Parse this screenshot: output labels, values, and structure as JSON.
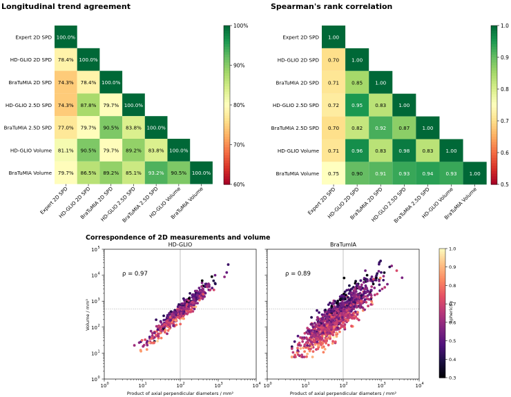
{
  "chart_data": [
    {
      "type": "heatmap",
      "title": "Longitudinal trend agreement",
      "labels": [
        "Expert 2D SPD",
        "HD-GLIO 2D SPD",
        "BraTuMIA 2D SPD",
        "HD-GLIO 2.5D SPD",
        "BraTuMIA 2.5D SPD",
        "HD-GLIO Volume",
        "BraTuMIA Volume"
      ],
      "cells": [
        [
          "100.0%"
        ],
        [
          "78.4%",
          "100.0%"
        ],
        [
          "74.3%",
          "78.4%",
          "100.0%"
        ],
        [
          "74.3%",
          "87.8%",
          "79.7%",
          "100.0%"
        ],
        [
          "77.0%",
          "79.7%",
          "90.5%",
          "83.8%",
          "100.0%"
        ],
        [
          "81.1%",
          "90.5%",
          "79.7%",
          "89.2%",
          "83.8%",
          "100.0%"
        ],
        [
          "79.7%",
          "86.5%",
          "89.2%",
          "85.1%",
          "93.2%",
          "90.5%",
          "100.0%"
        ]
      ],
      "values": [
        [
          100.0
        ],
        [
          78.4,
          100.0
        ],
        [
          74.3,
          78.4,
          100.0
        ],
        [
          74.3,
          87.8,
          79.7,
          100.0
        ],
        [
          77.0,
          79.7,
          90.5,
          83.8,
          100.0
        ],
        [
          81.1,
          90.5,
          79.7,
          89.2,
          83.8,
          100.0
        ],
        [
          79.7,
          86.5,
          89.2,
          85.1,
          93.2,
          90.5,
          100.0
        ]
      ],
      "vmin": 60,
      "vmax": 100,
      "colorbar_ticks": [
        "100%",
        "90%",
        "80%",
        "70%",
        "60%"
      ]
    },
    {
      "type": "heatmap",
      "title": "Spearman's rank correlation",
      "labels": [
        "Expert 2D SPD",
        "HD-GLIO 2D SPD",
        "BraTuMIA 2D SPD",
        "HD-GLIO 2.5D SPD",
        "BraTuMIA 2.5D SPD",
        "HD-GLIO Volume",
        "BraTuMIA Volume"
      ],
      "cells": [
        [
          "1.00"
        ],
        [
          "0.70",
          "1.00"
        ],
        [
          "0.71",
          "0.85",
          "1.00"
        ],
        [
          "0.72",
          "0.95",
          "0.83",
          "1.00"
        ],
        [
          "0.70",
          "0.82",
          "0.92",
          "0.87",
          "1.00"
        ],
        [
          "0.71",
          "0.96",
          "0.83",
          "0.98",
          "0.83",
          "1.00"
        ],
        [
          "0.75",
          "0.90",
          "0.91",
          "0.93",
          "0.94",
          "0.93",
          "1.00"
        ]
      ],
      "values": [
        [
          1.0
        ],
        [
          0.7,
          1.0
        ],
        [
          0.71,
          0.85,
          1.0
        ],
        [
          0.72,
          0.95,
          0.83,
          1.0
        ],
        [
          0.7,
          0.82,
          0.92,
          0.87,
          1.0
        ],
        [
          0.71,
          0.96,
          0.83,
          0.98,
          0.83,
          1.0
        ],
        [
          0.75,
          0.9,
          0.91,
          0.93,
          0.94,
          0.93,
          1.0
        ]
      ],
      "vmin": 0.5,
      "vmax": 1.0,
      "colorbar_ticks": [
        "1.0",
        "0.9",
        "0.8",
        "0.7",
        "0.6",
        "0.5"
      ]
    },
    {
      "type": "scatter",
      "figure_title": "Correspondence of 2D measurements and volume",
      "panels": [
        {
          "subtitle": "HD-GLIO",
          "rho_label": "ρ = 0.97",
          "rho": 0.97,
          "x_center_log": 2.0,
          "x_spread_log": 0.42,
          "slope": 1.27,
          "intercept": 0.04,
          "noise": 0.17,
          "n_points": 520
        },
        {
          "subtitle": "BraTumIA",
          "rho_label": "ρ = 0.89",
          "rho": 0.89,
          "x_center_log": 1.85,
          "x_spread_log": 0.48,
          "slope": 1.25,
          "intercept": 0.12,
          "noise": 0.33,
          "n_points": 1150
        }
      ],
      "xlabel": "Product of axial perpendicular diameters / mm²",
      "ylabel": "Volume / mm³",
      "xlim_log10": [
        0,
        4
      ],
      "ylim_log10": [
        0,
        5
      ],
      "x_tick_exponents": [
        "0",
        "1",
        "2",
        "3",
        "4"
      ],
      "y_tick_exponents": [
        "0",
        "1",
        "2",
        "3",
        "4",
        "5"
      ],
      "tick_base": "10",
      "reference_lines": {
        "x": 100,
        "y": 500
      },
      "colorbar_label": "Sphericity",
      "colorbar_range": [
        0.3,
        1.0
      ],
      "colorbar_ticks": [
        "1.0",
        "0.9",
        "0.8",
        "0.7",
        "0.6",
        "0.5",
        "0.4",
        "0.3"
      ]
    }
  ]
}
